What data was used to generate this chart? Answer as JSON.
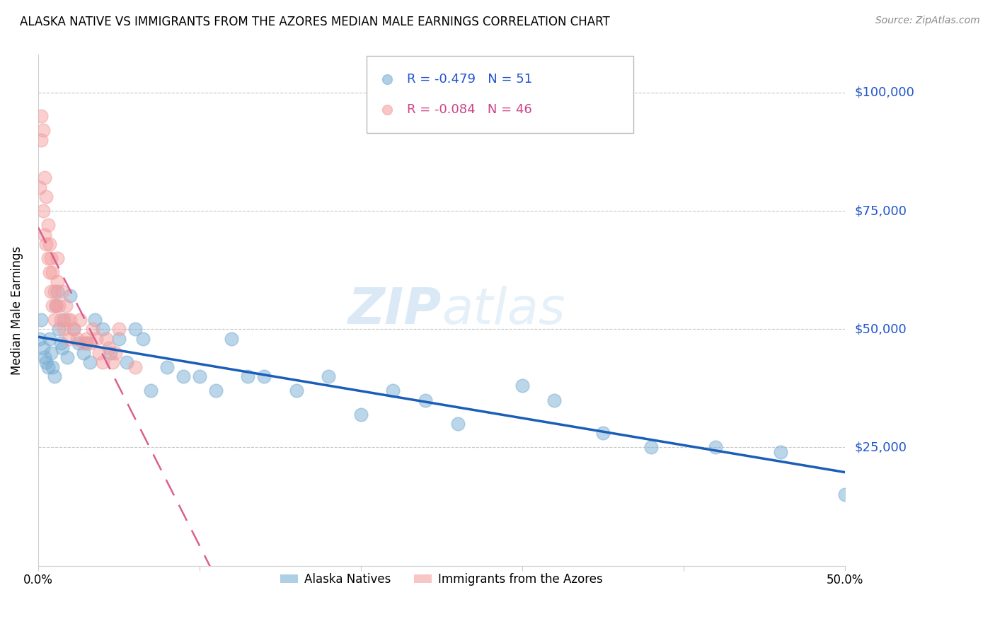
{
  "title": "ALASKA NATIVE VS IMMIGRANTS FROM THE AZORES MEDIAN MALE EARNINGS CORRELATION CHART",
  "source": "Source: ZipAtlas.com",
  "ylabel": "Median Male Earnings",
  "yticks": [
    0,
    25000,
    50000,
    75000,
    100000
  ],
  "ytick_labels": [
    "",
    "$25,000",
    "$50,000",
    "$75,000",
    "$100,000"
  ],
  "xlim": [
    0.0,
    0.5
  ],
  "ylim": [
    0,
    108000
  ],
  "legend_blue_label": "Alaska Natives",
  "legend_pink_label": "Immigrants from the Azores",
  "R_blue": -0.479,
  "N_blue": 51,
  "R_pink": -0.084,
  "N_pink": 46,
  "blue_color": "#7BAFD4",
  "pink_color": "#F4A0A0",
  "blue_line_color": "#1A5EB8",
  "pink_line_color": "#D96090",
  "watermark_zip": "ZIP",
  "watermark_atlas": "atlas",
  "blue_x": [
    0.001,
    0.002,
    0.003,
    0.004,
    0.005,
    0.006,
    0.007,
    0.008,
    0.009,
    0.01,
    0.011,
    0.012,
    0.013,
    0.014,
    0.015,
    0.016,
    0.018,
    0.02,
    0.022,
    0.025,
    0.028,
    0.03,
    0.032,
    0.035,
    0.04,
    0.045,
    0.05,
    0.055,
    0.06,
    0.065,
    0.07,
    0.08,
    0.09,
    0.1,
    0.11,
    0.12,
    0.13,
    0.14,
    0.16,
    0.18,
    0.2,
    0.22,
    0.24,
    0.26,
    0.3,
    0.32,
    0.35,
    0.38,
    0.42,
    0.46,
    0.5
  ],
  "blue_y": [
    48000,
    52000,
    46000,
    44000,
    43000,
    42000,
    48000,
    45000,
    42000,
    40000,
    55000,
    58000,
    50000,
    47000,
    46000,
    52000,
    44000,
    57000,
    50000,
    47000,
    45000,
    47000,
    43000,
    52000,
    50000,
    45000,
    48000,
    43000,
    50000,
    48000,
    37000,
    42000,
    40000,
    40000,
    37000,
    48000,
    40000,
    40000,
    37000,
    40000,
    32000,
    37000,
    35000,
    30000,
    38000,
    35000,
    28000,
    25000,
    25000,
    24000,
    15000
  ],
  "pink_x": [
    0.001,
    0.002,
    0.002,
    0.003,
    0.003,
    0.004,
    0.004,
    0.005,
    0.005,
    0.006,
    0.006,
    0.007,
    0.007,
    0.008,
    0.008,
    0.009,
    0.009,
    0.01,
    0.01,
    0.011,
    0.012,
    0.012,
    0.013,
    0.014,
    0.015,
    0.016,
    0.017,
    0.018,
    0.019,
    0.02,
    0.022,
    0.024,
    0.026,
    0.028,
    0.03,
    0.032,
    0.034,
    0.036,
    0.038,
    0.04,
    0.042,
    0.044,
    0.046,
    0.048,
    0.05,
    0.06
  ],
  "pink_y": [
    80000,
    95000,
    90000,
    92000,
    75000,
    82000,
    70000,
    78000,
    68000,
    72000,
    65000,
    68000,
    62000,
    65000,
    58000,
    62000,
    55000,
    58000,
    52000,
    55000,
    65000,
    60000,
    55000,
    52000,
    58000,
    50000,
    55000,
    52000,
    48000,
    52000,
    50000,
    48000,
    52000,
    47000,
    48000,
    47000,
    50000,
    48000,
    45000,
    43000,
    48000,
    46000,
    43000,
    45000,
    50000,
    42000
  ]
}
